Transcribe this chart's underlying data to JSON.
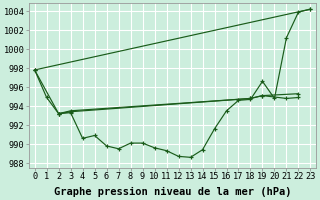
{
  "xlabel": "Graphe pression niveau de la mer (hPa)",
  "background_color": "#cceedd",
  "grid_color": "#ffffff",
  "line_color": "#1a5c1a",
  "xlim": [
    -0.5,
    23.5
  ],
  "ylim": [
    987.5,
    1004.8
  ],
  "yticks": [
    988,
    990,
    992,
    994,
    996,
    998,
    1000,
    1002,
    1004
  ],
  "xticks": [
    0,
    1,
    2,
    3,
    4,
    5,
    6,
    7,
    8,
    9,
    10,
    11,
    12,
    13,
    14,
    15,
    16,
    17,
    18,
    19,
    20,
    21,
    22,
    23
  ],
  "series_main_x": [
    0,
    1,
    2,
    3,
    4,
    5,
    6,
    7,
    8,
    9,
    10,
    11,
    12,
    13,
    14,
    15,
    16,
    17,
    18,
    19,
    20,
    21,
    22,
    23
  ],
  "series_main_y": [
    997.8,
    994.9,
    993.2,
    993.3,
    990.6,
    990.9,
    989.8,
    989.5,
    990.1,
    990.1,
    989.6,
    989.3,
    988.7,
    988.6,
    989.4,
    991.6,
    993.5,
    994.6,
    994.7,
    996.6,
    994.8,
    1001.2,
    1003.9,
    1004.2
  ],
  "series_line1_x": [
    0,
    23
  ],
  "series_line1_y": [
    997.8,
    1004.2
  ],
  "series_line2_x": [
    0,
    2,
    3,
    18,
    19,
    22
  ],
  "series_line2_y": [
    997.8,
    993.2,
    993.4,
    994.8,
    995.1,
    995.3
  ],
  "series_line3_x": [
    2,
    3,
    18,
    19,
    21,
    22
  ],
  "series_line3_y": [
    993.2,
    993.5,
    994.8,
    995.1,
    994.8,
    994.9
  ],
  "xlabel_fontsize": 7.5,
  "tick_fontsize": 6.2
}
